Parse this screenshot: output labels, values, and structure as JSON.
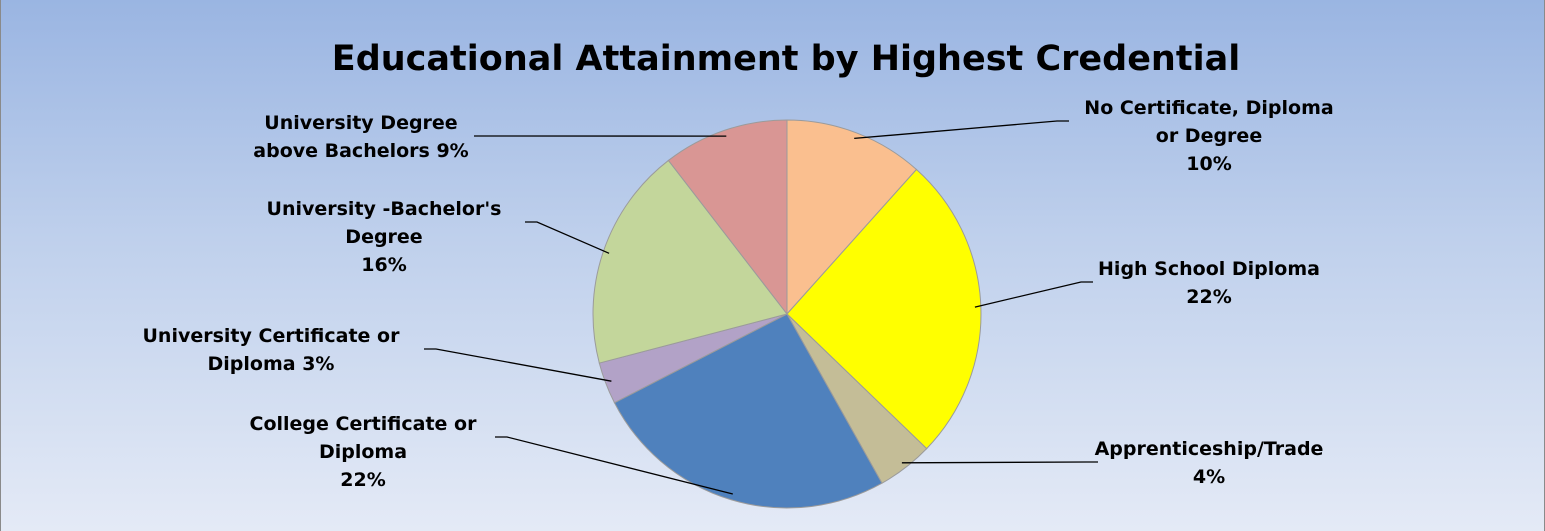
{
  "chart_data": {
    "type": "pie",
    "title": "Educational Attainment by Highest Credential",
    "slices": [
      {
        "label_lines": [
          "No Certificate, Diploma",
          "or Degree",
          "10%"
        ],
        "category": "No Certificate, Diploma or Degree",
        "value": 10,
        "color": "#fabf8f"
      },
      {
        "label_lines": [
          "High School Diploma",
          "22%"
        ],
        "category": "High School Diploma",
        "value": 22,
        "color": "#ffff00"
      },
      {
        "label_lines": [
          "Apprenticeship/Trade",
          "4%"
        ],
        "category": "Apprenticeship/Trade",
        "value": 4,
        "color": "#c4bd97"
      },
      {
        "label_lines": [
          "College Certificate or",
          "Diploma",
          "22%"
        ],
        "category": "College Certificate or Diploma",
        "value": 22,
        "color": "#4f81bd"
      },
      {
        "label_lines": [
          "University Certificate or",
          "Diploma 3%"
        ],
        "category": "University Certificate or Diploma",
        "value": 3,
        "color": "#b2a2c7"
      },
      {
        "label_lines": [
          "University -Bachelor's",
          "Degree",
          "16%"
        ],
        "category": "University -Bachelor's Degree",
        "value": 16,
        "color": "#c3d69b"
      },
      {
        "label_lines": [
          "University Degree",
          "above Bachelors 9%"
        ],
        "category": "University Degree above Bachelors",
        "value": 9,
        "color": "#d99694"
      }
    ],
    "legend": "none"
  }
}
